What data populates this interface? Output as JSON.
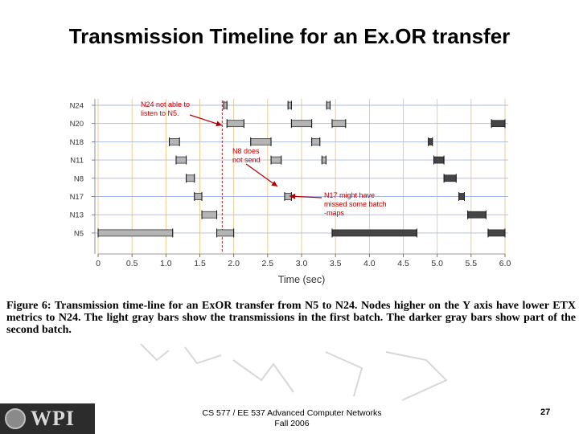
{
  "slide": {
    "title": "Transmission Timeline for an Ex.OR transfer",
    "caption": "Figure 6: Transmission time-line for an ExOR transfer from N5 to N24. Nodes higher on the Y axis have lower ETX metrics to N24. The light gray bars show the transmissions in the first batch. The darker gray bars show part of the second batch.",
    "footer_line1": "CS 577 / EE 537 Advanced Computer Networks",
    "footer_line2": "Fall 2006",
    "page_number": "27",
    "logo_text": "WPI"
  },
  "annotations": [
    {
      "name": "annotation-n24",
      "text": [
        "N24 not able to",
        "listen to N5."
      ]
    },
    {
      "name": "annotation-n8",
      "text": [
        "N8 does",
        "not send"
      ]
    },
    {
      "name": "annotation-n17",
      "text": [
        "N17 might have",
        "missed some batch",
        "-maps"
      ]
    }
  ],
  "colors": {
    "first_batch": "#b4b4b4",
    "second_batch": "#454545",
    "annotation_text": "#c00000",
    "arrow": "#b00000",
    "grid": "#aab8e8",
    "vline": "#e6c27a",
    "dashed": "#9a2b2b"
  },
  "chart_data": {
    "type": "timeline",
    "xlabel": "Time (sec)",
    "ylabel": "",
    "xlim": [
      0,
      6.0
    ],
    "xticks": [
      "0",
      "0.5",
      "1.0",
      "1.5",
      "2.0",
      "2.5",
      "3.0",
      "3.5",
      "4.0",
      "4.5",
      "5.0",
      "5.5",
      "6.0"
    ],
    "categories": [
      "N24",
      "N20",
      "N18",
      "N11",
      "N8",
      "N17",
      "N13",
      "N5"
    ],
    "dashed_marker_x": 1.83,
    "series": [
      {
        "batch": 1,
        "bars": [
          {
            "node": "N24",
            "start": 1.85,
            "end": 1.9
          },
          {
            "node": "N24",
            "start": 2.8,
            "end": 2.85
          },
          {
            "node": "N24",
            "start": 3.37,
            "end": 3.42
          },
          {
            "node": "N20",
            "start": 1.9,
            "end": 2.15
          },
          {
            "node": "N20",
            "start": 2.85,
            "end": 3.15
          },
          {
            "node": "N20",
            "start": 3.45,
            "end": 3.65
          },
          {
            "node": "N18",
            "start": 1.05,
            "end": 1.2
          },
          {
            "node": "N18",
            "start": 2.25,
            "end": 2.55
          },
          {
            "node": "N18",
            "start": 3.15,
            "end": 3.27
          },
          {
            "node": "N11",
            "start": 1.15,
            "end": 1.3
          },
          {
            "node": "N11",
            "start": 2.55,
            "end": 2.7
          },
          {
            "node": "N11",
            "start": 3.3,
            "end": 3.36
          },
          {
            "node": "N8",
            "start": 1.3,
            "end": 1.42
          },
          {
            "node": "N17",
            "start": 1.42,
            "end": 1.53
          },
          {
            "node": "N17",
            "start": 2.75,
            "end": 2.85
          },
          {
            "node": "N13",
            "start": 1.53,
            "end": 1.75
          },
          {
            "node": "N5",
            "start": 0.0,
            "end": 1.1
          },
          {
            "node": "N5",
            "start": 1.75,
            "end": 2.0
          }
        ]
      },
      {
        "batch": 2,
        "bars": [
          {
            "node": "N20",
            "start": 5.8,
            "end": 6.0
          },
          {
            "node": "N18",
            "start": 4.87,
            "end": 4.93
          },
          {
            "node": "N11",
            "start": 4.95,
            "end": 5.1
          },
          {
            "node": "N8",
            "start": 5.1,
            "end": 5.28
          },
          {
            "node": "N17",
            "start": 5.32,
            "end": 5.4
          },
          {
            "node": "N13",
            "start": 5.45,
            "end": 5.72
          },
          {
            "node": "N5",
            "start": 3.45,
            "end": 4.7
          },
          {
            "node": "N5",
            "start": 5.75,
            "end": 6.0
          }
        ]
      }
    ]
  }
}
